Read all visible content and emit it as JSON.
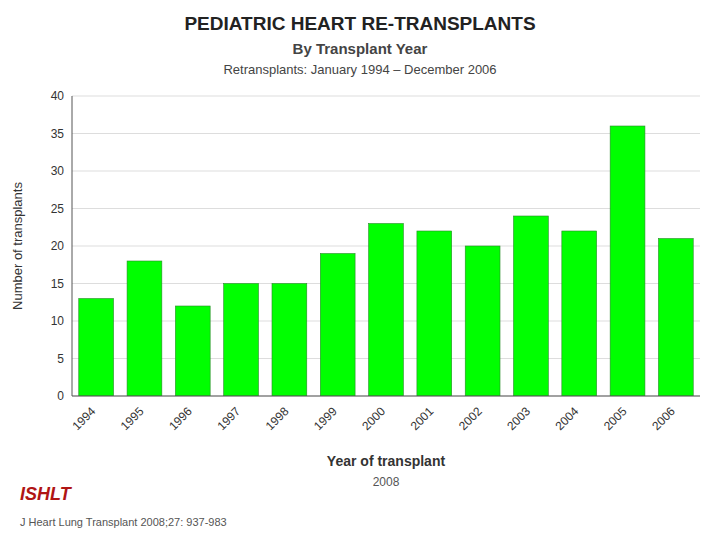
{
  "chart_data": {
    "type": "bar",
    "title": "PEDIATRIC HEART RE-TRANSPLANTS",
    "subtitle": [
      "By Transplant Year",
      "Retransplants: January 1994 – December 2006"
    ],
    "xlabel": "Year of transplant",
    "ylabel": "Number of transplants",
    "annotations": [
      "2008",
      "ISHLT",
      "J Heart Lung Transplant 2008;27: 937-983"
    ],
    "categories": [
      "1994",
      "1995",
      "1996",
      "1997",
      "1998",
      "1999",
      "2000",
      "2001",
      "2002",
      "2003",
      "2004",
      "2005",
      "2006"
    ],
    "values": [
      13,
      18,
      12,
      15,
      15,
      19,
      23,
      22,
      20,
      24,
      22,
      36,
      21
    ],
    "color": "#00FF00",
    "ylim": [
      0,
      40
    ],
    "yticks": [
      0,
      5,
      10,
      15,
      20,
      25,
      30,
      35,
      40
    ],
    "grid": true
  }
}
